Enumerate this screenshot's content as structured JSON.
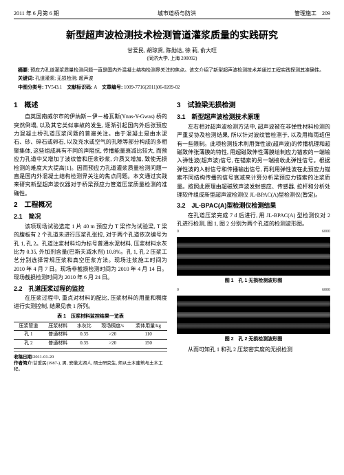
{
  "header": {
    "left": "2011 年 6 月第 6 期",
    "center": "城市道桥与防洪",
    "right_label": "管理施工",
    "page": "209"
  },
  "title": "新型超声波检测技术检测管道灌浆质量的实践研究",
  "authors": "甘爱民, 胡琼贤, 陈勋达, 徐  莉, 俞大旺",
  "affiliation": "(同济大学, 上海 200092)",
  "abstract": {
    "abstract_label": "摘要:",
    "abstract_text": "预应力孔道灌浆质量检测问题一直是国内外混凝土结构检测界关注的焦点。该文介绍了新型超声波检测技术并通过工程实践探测其准确性。",
    "keywords_label": "关键词:",
    "keywords_text": "孔道灌浆; 无损检测; 超声波",
    "clc_label": "中图分类号:",
    "clc_text": "TV543.1",
    "doc_code_label": "文献标识码:",
    "doc_code_text": "A",
    "article_no_label": "文章编号:",
    "article_no_text": "1009-7716(2011)06-0209-02"
  },
  "sections": {
    "s1_title": "1　概述",
    "s1_p1": "自英国南威尔市的伊纳斯－伊－格瓦斯(Ynas-Y-Gwas) 桥的突然倒塌, 以及其它类似事故的发生, 逐渐引起国内外后张预应力混凝土桥孔道压浆问题的普遍关注。由于混凝土是由水泥石、砂、碎石或卵石, 以及充水或空气的孔隙等部分构成的多相聚集体, 这些组成具有不同的声阻抗, 传播能量衰减比较大, 而预应力孔道中又增加了波纹管和压浆砂浆, 介质又增加, 致使无损检测的难度大大提高[1]。因而预应力孔道灌浆质量检测问题一直是国内外混凝土结构检测界关注的焦点问题。本文通过实践来研究新型超声波仪器对于桥梁预应力管道压浆质量检测的准确性。",
    "s2_title": "2　工程概况",
    "s2_1_title": "2.1　简况",
    "s2_1_p1": "该项现场试验选定 1 片 40 m 预应力 T 梁作为试验梁, T 梁的腹板有 2 个孔道未进行压浆孔张拉, 对于两个孔道依次编号为孔 1, 孔 2。孔道注浆材料均为标号普通水泥材料, 压浆材料水灰比为 0.35, 外加剂含量(巴斯夫减水剂) 10.8%。孔 1, 孔 2 压浆工艺分别选择常规压浆和真空压浆方法。现场注浆施工时间为 2010 年 4 月 7 日。现场非截损检测时间为 2010 年 4 月 14 日。现场截损检测时间为 2010 年 6 月 24 日。",
    "s2_2_title": "2.2　孔道压浆过程的监控",
    "s2_2_p1": "在压浆过程中, 重点对材料的配比, 压浆材料的用量和稠度进行实测控制, 结果见表 1 所列。",
    "table1_caption": "表 1　压浆材料监控结果一览表",
    "table1": {
      "headers": [
        "压浆管道",
        "压浆材料",
        "水灰比",
        "现场稠度/s",
        "浆体用量/kg"
      ],
      "rows": [
        [
          "孔 1",
          "普通材料",
          "0.35",
          ">20",
          "110"
        ],
        [
          "孔 2",
          "普通材料",
          "0.35",
          ">20",
          "150"
        ]
      ]
    },
    "footnote": {
      "recv_label": "收稿日期:",
      "recv_text": "2011-01-20",
      "author_label": "作者简介:",
      "author_text": "甘爱民(1987-), 男, 安徽太湖人, 硕士研究生, 师从土木建筑与土木工程。"
    },
    "s3_title": "3　试验梁无损检测",
    "s3_1_title": "3.1　新型超声波检测技术原理",
    "s3_1_p1": "左右相对超声波检测方法中, 超声波被在非弹性材料检测的严重妥协及检测结果, 所以针对波纹管检测于, 以及用梅雨班但有一些限制。此项检测技术利用弹性波(超声波)的传播机理和超磁致伸张薄膜的特性, 用超磁致伸性薄膜绘制应力锚索的一端输入弹性波(超声波)信号, 在锚索的另一端接收此弹性信号。根据弹性波的入射信号和传播输出信号, 再利用弹性波在此预应力锚索不同结构传播的信号衰减来计算分析梁预应力锚索的注浆质量。按照此原理由超磁致声波发射感应、传感器, 拉杆和分析处理软件组成新型超声波检测仪 JL-BPAC(A)型检测仪(暂定)。",
    "s3_2_title": "3.2　JL-BPAC(A)型检测仪检测结果",
    "s3_2_p1": "在孔道压浆完成 7 d 后进行, 用 JL-BPAC(A) 型检测仪对 2 孔进行检测, 图 1, 图 2 分别为两个孔道的检测波形图。",
    "fig1_caption": "图 1　孔 1 无损检测波形图",
    "fig2_caption": "图 2　孔 2 无损检测波形图",
    "s3_2_p2": "从而可知孔 1 和孔 2 压浆密实度的无损检测",
    "axis": {
      "start": "0",
      "end": "6000"
    }
  }
}
